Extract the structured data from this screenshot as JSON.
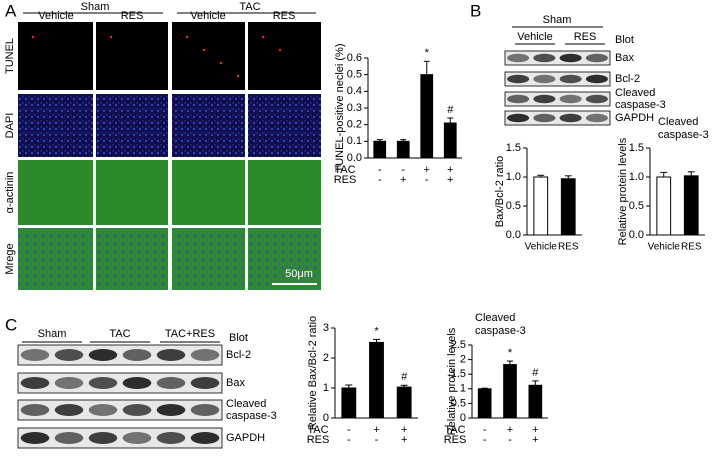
{
  "panel_a": {
    "label": "A",
    "groups": [
      "Sham",
      "TAC"
    ],
    "treatments": [
      "Vehicle",
      "RES",
      "Vehicle",
      "RES"
    ],
    "rows": [
      "TUNEL",
      "DAPI",
      "α-actinin",
      "Mrege"
    ],
    "scale_bar": "50μm"
  },
  "panel_b": {
    "label": "B",
    "blot": {
      "group": "Sham",
      "treatments": [
        "Vehicle",
        "RES"
      ],
      "header": "Blot",
      "rows": [
        [
          "Bax"
        ],
        [
          "Bcl-2"
        ],
        [
          "Cleaved",
          "caspase-3"
        ],
        [
          "GAPDH"
        ]
      ]
    }
  },
  "panel_c": {
    "label": "C",
    "blot": {
      "groups": [
        "Sham",
        "TAC",
        "TAC+RES"
      ],
      "header": "Blot",
      "rows": [
        [
          "Bcl-2"
        ],
        [
          "Bax"
        ],
        [
          "Cleaved",
          "caspase-3"
        ],
        [
          "GAPDH"
        ]
      ]
    }
  },
  "chart_data": [
    {
      "type": "bar",
      "ylabel": "TUNEL-positive neclei (%)",
      "values": [
        0.1,
        0.1,
        0.5,
        0.21
      ],
      "errors": [
        0.01,
        0.01,
        0.08,
        0.03
      ],
      "markers": [
        null,
        null,
        "*",
        "#"
      ],
      "color": "#000000",
      "conditions": [
        {
          "name": "TAC",
          "signs": [
            "-",
            "-",
            "+",
            "+"
          ]
        },
        {
          "name": "RES",
          "signs": [
            "-",
            "+",
            "-",
            "+"
          ]
        }
      ],
      "ylim": [
        0,
        0.6
      ],
      "yticks": [
        {
          "value": 0,
          "label": "0.0"
        },
        0.1,
        0.2,
        0.3,
        0.4,
        0.5,
        0.6
      ]
    },
    {
      "type": "bar",
      "ylabel": "Bax/Bcl-2 ratio",
      "categories": [
        "Vehicle",
        "RES"
      ],
      "values": [
        1.0,
        0.97
      ],
      "errors": [
        0.03,
        0.05
      ],
      "colors": [
        "#ffffff",
        "#000000"
      ],
      "ylim": [
        0,
        1.5
      ],
      "yticks": [
        {
          "value": 0,
          "label": "0.0"
        },
        0.5,
        {
          "value": 1,
          "label": "1.0"
        },
        1.5
      ]
    },
    {
      "type": "bar",
      "title_lines": [
        "Cleaved",
        "caspase-3"
      ],
      "ylabel": "Relative protein levels",
      "categories": [
        "Vehicle",
        "RES"
      ],
      "values": [
        1.0,
        1.02
      ],
      "errors": [
        0.08,
        0.07
      ],
      "colors": [
        "#ffffff",
        "#000000"
      ],
      "ylim": [
        0,
        1.5
      ],
      "yticks": [
        {
          "value": 0,
          "label": "0.0"
        },
        0.5,
        {
          "value": 1,
          "label": "1.0"
        },
        1.5
      ]
    },
    {
      "type": "bar",
      "ylabel": "Relative Bax/Bcl-2 ratio",
      "values": [
        1.0,
        2.52,
        1.03
      ],
      "errors": [
        0.1,
        0.1,
        0.06
      ],
      "markers": [
        null,
        "*",
        "#"
      ],
      "color": "#000000",
      "conditions": [
        {
          "name": "TAC",
          "signs": [
            "-",
            "+",
            "+"
          ]
        },
        {
          "name": "RES",
          "signs": [
            "-",
            "-",
            "+"
          ]
        }
      ],
      "ylim": [
        0,
        3
      ],
      "yticks": [
        0,
        1,
        2,
        3
      ]
    },
    {
      "type": "bar",
      "title_lines": [
        "Cleaved",
        "caspase-3"
      ],
      "ylabel": "Relative protein levels",
      "values": [
        1.0,
        1.83,
        1.12
      ],
      "errors": [
        0.02,
        0.12,
        0.15
      ],
      "markers": [
        null,
        "*",
        "#"
      ],
      "color": "#000000",
      "conditions": [
        {
          "name": "TAC",
          "signs": [
            "-",
            "+",
            "+"
          ]
        },
        {
          "name": "RES",
          "signs": [
            "-",
            "-",
            "+"
          ]
        }
      ],
      "ylim": [
        0,
        2.5
      ],
      "yticks": [
        0,
        0.5,
        1,
        1.5,
        2,
        2.5
      ]
    }
  ]
}
